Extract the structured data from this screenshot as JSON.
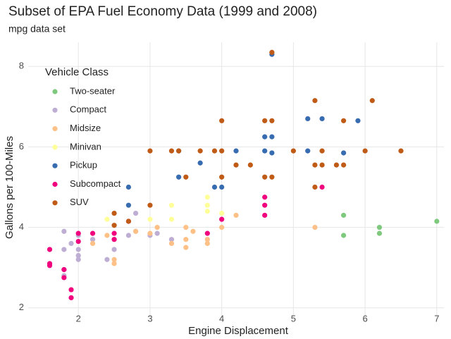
{
  "chart_data": {
    "type": "scatter",
    "title": "Subset of EPA Fuel Economy Data (1999 and 2008)",
    "subtitle": "mpg data set",
    "x_label": "Engine Displacement",
    "y_label": "Gallons per 100-Miles",
    "legend_title": "Vehicle Class",
    "legend_position": "top-left",
    "grid": true,
    "xlim": [
      1.3,
      7.1
    ],
    "xticks": [
      2,
      3,
      4,
      5,
      6,
      7
    ],
    "ylim": [
      1.75,
      8.6
    ],
    "yticks": [
      2,
      4,
      6,
      8
    ],
    "series": [
      {
        "name": "Two-seater",
        "color": "#7fc97f",
        "x": [
          5.7,
          5.7,
          6.2,
          6.2,
          7.0
        ],
        "values": [
          4.3,
          3.8,
          4.0,
          3.85,
          4.15
        ]
      },
      {
        "name": "Compact",
        "color": "#beaed4",
        "x": [
          1.8,
          1.8,
          2.0,
          2.0,
          2.8,
          2.8,
          3.1,
          1.8,
          1.8,
          2.0,
          2.2,
          2.4,
          2.5,
          2.5,
          2.7,
          3.0,
          3.3,
          1.9,
          2.0
        ],
        "values": [
          3.45,
          3.9,
          3.8,
          3.45,
          3.9,
          4.35,
          3.85,
          2.8,
          2.95,
          3.3,
          3.7,
          3.2,
          3.45,
          3.7,
          3.8,
          3.8,
          3.7,
          3.6,
          3.2
        ]
      },
      {
        "name": "Midsize",
        "color": "#fdc086",
        "x": [
          2.4,
          2.5,
          2.5,
          3.0,
          3.1,
          3.3,
          3.5,
          3.5,
          3.5,
          3.6,
          3.8,
          3.8,
          4.0,
          4.2,
          5.3,
          2.8,
          2.2
        ],
        "values": [
          3.8,
          3.1,
          3.2,
          3.85,
          4.0,
          3.6,
          3.7,
          3.5,
          4.0,
          3.9,
          3.6,
          3.7,
          4.0,
          4.3,
          4.0,
          3.9,
          3.6
        ]
      },
      {
        "name": "Minivan",
        "color": "#ffff99",
        "x": [
          2.4,
          3.0,
          3.3,
          3.3,
          3.8,
          3.8,
          4.0,
          3.8
        ],
        "values": [
          4.2,
          4.2,
          4.55,
          4.2,
          4.4,
          4.75,
          4.35,
          4.55
        ]
      },
      {
        "name": "Pickup",
        "color": "#386cb0",
        "x": [
          2.7,
          2.7,
          3.4,
          3.4,
          3.7,
          3.9,
          4.0,
          4.2,
          4.6,
          4.7,
          4.7,
          4.7,
          5.2,
          5.2,
          5.4,
          5.9,
          5.7,
          4.6
        ],
        "values": [
          4.55,
          5.0,
          5.9,
          5.25,
          5.6,
          5.0,
          5.0,
          5.9,
          6.25,
          6.25,
          8.3,
          5.85,
          6.7,
          5.9,
          6.7,
          6.65,
          5.85,
          5.9
        ]
      },
      {
        "name": "Subcompact",
        "color": "#f0027f",
        "x": [
          1.6,
          1.6,
          1.6,
          1.8,
          1.8,
          1.9,
          1.9,
          2.0,
          2.0,
          2.5,
          2.5,
          2.7,
          3.8,
          4.0,
          4.6,
          4.6,
          4.6,
          5.4,
          2.2
        ],
        "values": [
          3.45,
          3.1,
          3.05,
          2.95,
          2.75,
          2.45,
          2.25,
          3.85,
          3.65,
          3.85,
          3.7,
          4.15,
          3.85,
          4.2,
          4.3,
          4.75,
          4.55,
          5.0,
          3.85
        ]
      },
      {
        "name": "SUV",
        "color": "#bf5b17",
        "x": [
          2.5,
          2.5,
          3.0,
          3.3,
          3.4,
          3.5,
          3.7,
          3.9,
          4.0,
          4.0,
          4.0,
          4.2,
          4.4,
          4.6,
          4.6,
          4.7,
          4.7,
          4.7,
          5.0,
          5.3,
          5.3,
          5.3,
          5.4,
          5.4,
          5.7,
          5.7,
          6.0,
          6.1,
          6.5,
          5.6,
          3.0,
          2.7
        ],
        "values": [
          4.35,
          4.05,
          4.55,
          5.9,
          5.9,
          5.25,
          5.9,
          5.9,
          5.9,
          5.25,
          6.65,
          5.55,
          5.55,
          5.25,
          6.65,
          6.65,
          8.35,
          5.25,
          5.9,
          7.15,
          5.0,
          5.55,
          5.9,
          5.55,
          6.65,
          5.55,
          5.9,
          7.15,
          5.9,
          5.55,
          5.9,
          4.15
        ]
      }
    ]
  }
}
